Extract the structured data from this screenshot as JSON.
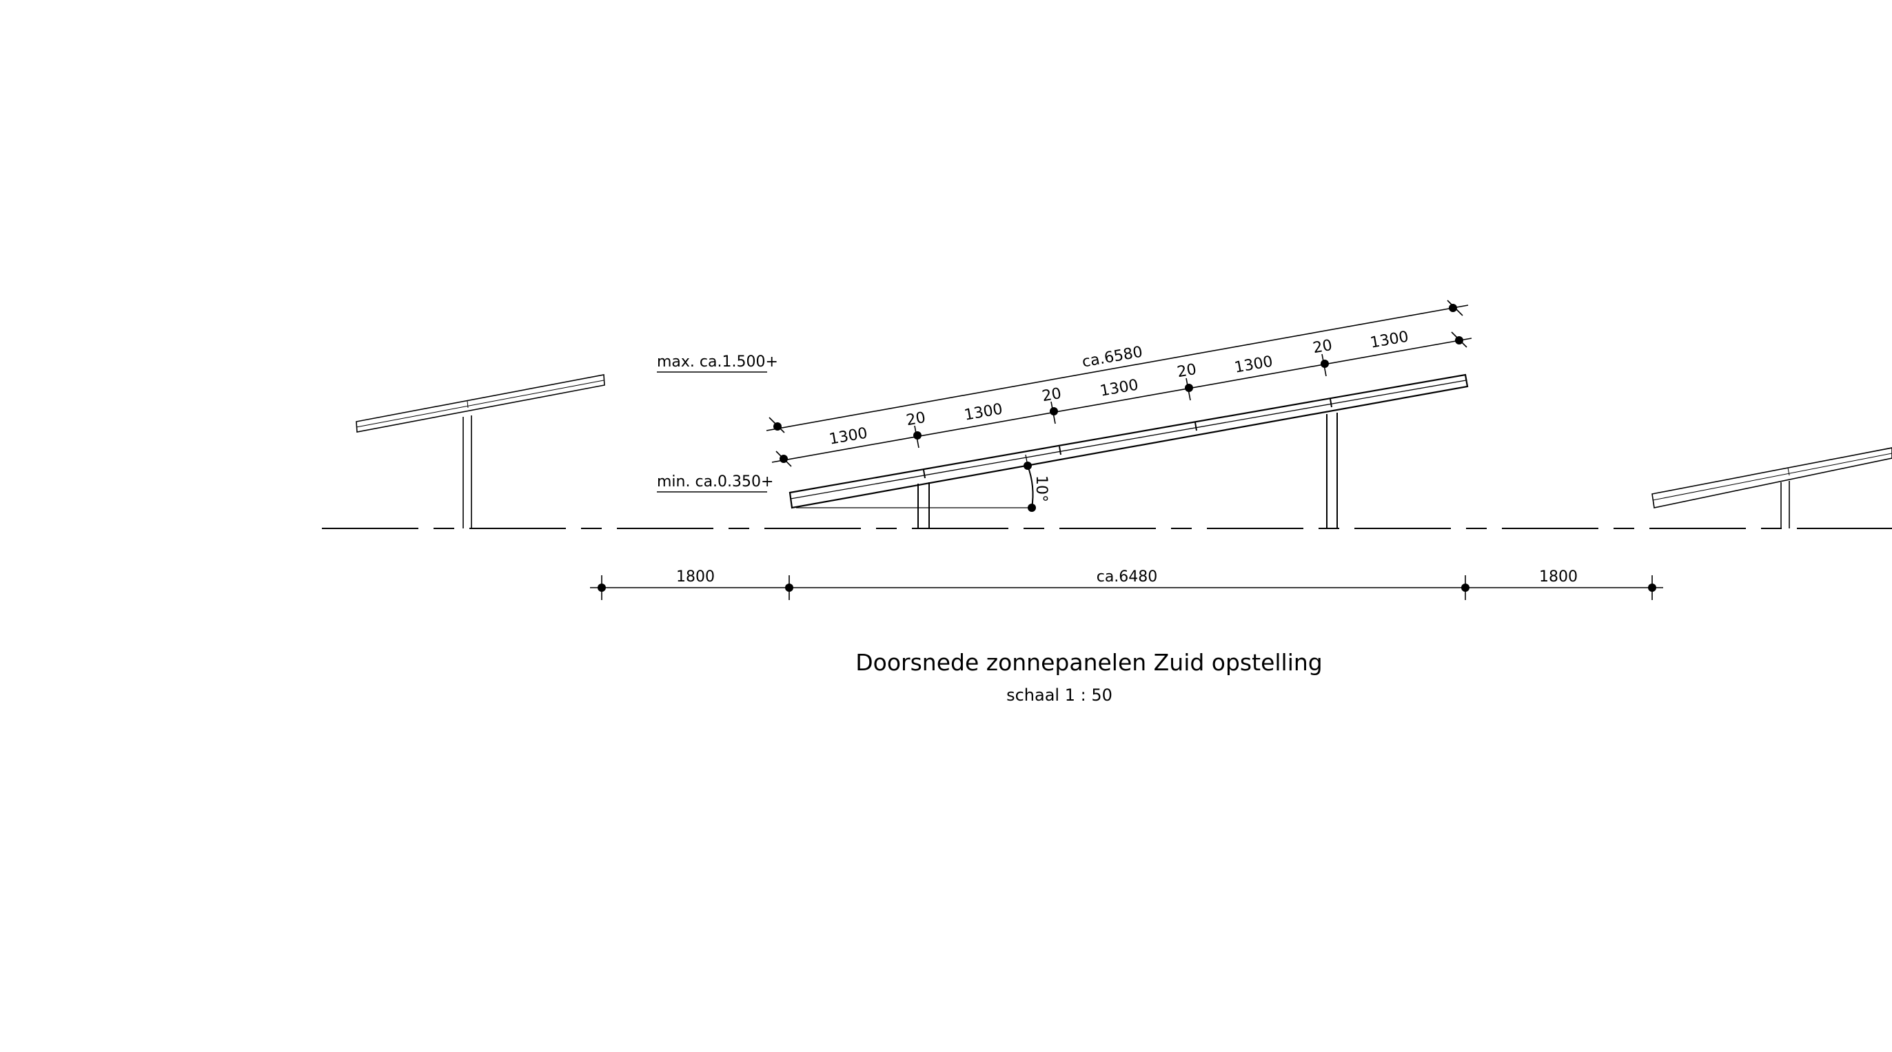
{
  "drawing": {
    "title": "Doorsnede zonnepanelen Zuid opstelling",
    "scale": "schaal 1 : 50",
    "height_labels": {
      "max": "max. ca.1.500+",
      "min": "min. ca.0.350+"
    },
    "angle_label": "10°",
    "panel_length_label": "ca.6580",
    "panel_segments": [
      "1300",
      "20",
      "1300",
      "20",
      "1300",
      "20",
      "1300",
      "20",
      "1300"
    ],
    "horizontal_dimensions": [
      "1800",
      "ca.6480",
      "1800"
    ],
    "colors": {
      "line": "#000000",
      "background": "#ffffff"
    }
  }
}
